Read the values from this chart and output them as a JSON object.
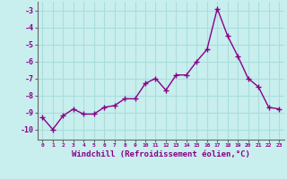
{
  "x": [
    0,
    1,
    2,
    3,
    4,
    5,
    6,
    7,
    8,
    9,
    10,
    11,
    12,
    13,
    14,
    15,
    16,
    17,
    18,
    19,
    20,
    21,
    22,
    23
  ],
  "y": [
    -9.3,
    -10.0,
    -9.2,
    -8.8,
    -9.1,
    -9.1,
    -8.7,
    -8.6,
    -8.2,
    -8.2,
    -7.3,
    -7.0,
    -7.7,
    -6.8,
    -6.8,
    -6.0,
    -5.3,
    -2.9,
    -4.5,
    -5.7,
    -7.0,
    -7.5,
    -8.7,
    -8.8
  ],
  "line_color": "#880088",
  "marker": "+",
  "marker_size": 4,
  "bg_color": "#c8eeee",
  "grid_color": "#aadddd",
  "xlabel": "Windchill (Refroidissement éolien,°C)",
  "xlabel_fontsize": 6.5,
  "ylabel_ticks": [
    -3,
    -4,
    -5,
    -6,
    -7,
    -8,
    -9,
    -10
  ],
  "xtick_labels": [
    "0",
    "1",
    "2",
    "3",
    "4",
    "5",
    "6",
    "7",
    "8",
    "9",
    "10",
    "11",
    "12",
    "13",
    "14",
    "15",
    "16",
    "17",
    "18",
    "19",
    "20",
    "21",
    "22",
    "23"
  ],
  "xlim": [
    -0.5,
    23.5
  ],
  "ylim": [
    -10.6,
    -2.5
  ],
  "line_width": 1.0
}
